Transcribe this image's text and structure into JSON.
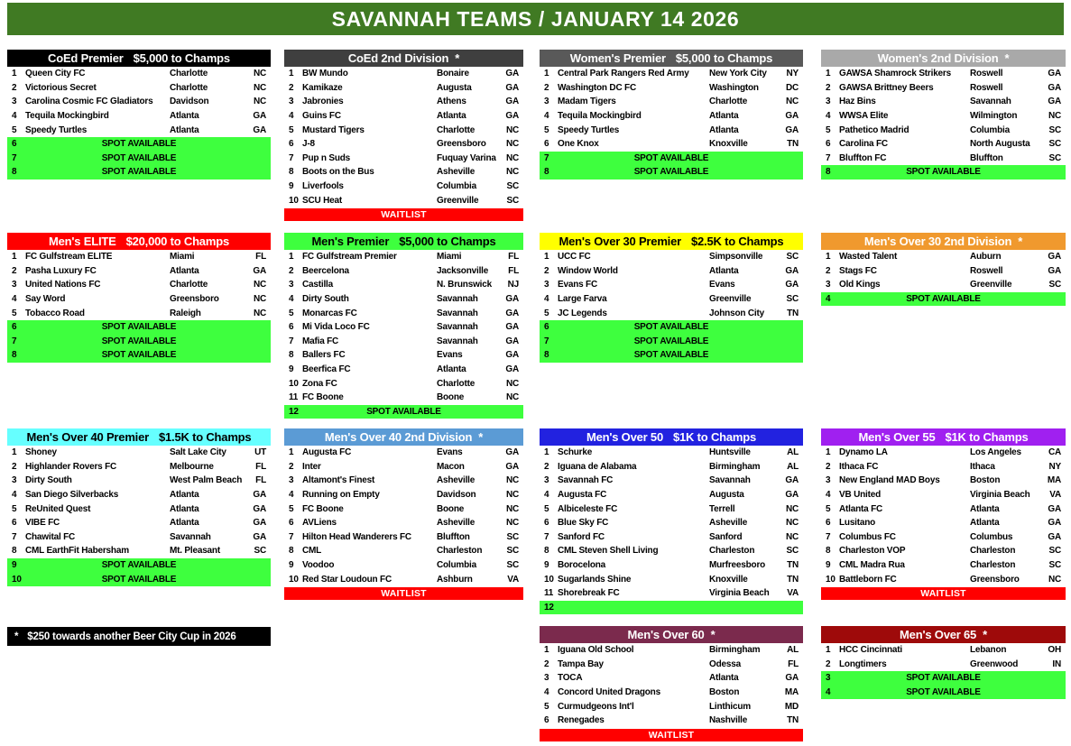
{
  "title_bar": {
    "text": "SAVANNAH TEAMS / JANUARY 14 2026",
    "bg": "#407a23"
  },
  "footnote": {
    "star": "*",
    "text": "$250 towards another Beer City Cup in 2026"
  },
  "tables": [
    {
      "key": "coed_premier",
      "name": "CoEd Premier",
      "prize": "$5,000 to Champs",
      "header_bg": "#000000",
      "header_fg": "#ffffff",
      "teams": [
        {
          "n": 1,
          "team": "Queen City FC",
          "city": "Charlotte",
          "state": "NC"
        },
        {
          "n": 2,
          "team": "Victorious Secret",
          "city": "Charlotte",
          "state": "NC"
        },
        {
          "n": 3,
          "team": "Carolina Cosmic FC Gladiators",
          "city": "Davidson",
          "state": "NC"
        },
        {
          "n": 4,
          "team": "Tequila Mockingbird",
          "city": "Atlanta",
          "state": "GA"
        },
        {
          "n": 5,
          "team": "Speedy Turtles",
          "city": "Atlanta",
          "state": "GA"
        }
      ],
      "spots": [
        {
          "n": 6,
          "label": "SPOT AVAILABLE"
        },
        {
          "n": 7,
          "label": "SPOT AVAILABLE"
        },
        {
          "n": 8,
          "label": "SPOT AVAILABLE"
        }
      ]
    },
    {
      "key": "coed_2nd",
      "name": "CoEd 2nd Division",
      "star": true,
      "header_bg": "#3f3f3f",
      "header_fg": "#ffffff",
      "teams": [
        {
          "n": 1,
          "team": "BW Mundo",
          "city": "Bonaire",
          "state": "GA"
        },
        {
          "n": 2,
          "team": "Kamikaze",
          "city": "Augusta",
          "state": "GA"
        },
        {
          "n": 3,
          "team": "Jabronies",
          "city": "Athens",
          "state": "GA"
        },
        {
          "n": 4,
          "team": "Guins FC",
          "city": "Atlanta",
          "state": "GA"
        },
        {
          "n": 5,
          "team": "Mustard Tigers",
          "city": "Charlotte",
          "state": "NC"
        },
        {
          "n": 6,
          "team": "J-8",
          "city": "Greensboro",
          "state": "NC"
        },
        {
          "n": 7,
          "team": "Pup n Suds",
          "city": "Fuquay Varina",
          "state": "NC"
        },
        {
          "n": 8,
          "team": "Boots on the Bus",
          "city": "Asheville",
          "state": "NC"
        },
        {
          "n": 9,
          "team": "Liverfools",
          "city": "Columbia",
          "state": "SC"
        },
        {
          "n": 10,
          "team": "SCU Heat",
          "city": "Greenville",
          "state": "SC"
        }
      ],
      "waitlist": "WAITLIST"
    },
    {
      "key": "womens_premier",
      "name": "Women's Premier",
      "prize": "$5,000 to Champs",
      "header_bg": "#595959",
      "header_fg": "#ffffff",
      "teams": [
        {
          "n": 1,
          "team": "Central Park Rangers Red Army",
          "city": "New York City",
          "state": "NY"
        },
        {
          "n": 2,
          "team": "Washington DC FC",
          "city": "Washington",
          "state": "DC"
        },
        {
          "n": 3,
          "team": "Madam Tigers",
          "city": "Charlotte",
          "state": "NC"
        },
        {
          "n": 4,
          "team": "Tequila Mockingbird",
          "city": "Atlanta",
          "state": "GA"
        },
        {
          "n": 5,
          "team": "Speedy Turtles",
          "city": "Atlanta",
          "state": "GA"
        },
        {
          "n": 6,
          "team": "One Knox",
          "city": "Knoxville",
          "state": "TN"
        }
      ],
      "spots": [
        {
          "n": 7,
          "label": "SPOT AVAILABLE"
        },
        {
          "n": 8,
          "label": "SPOT AVAILABLE"
        }
      ]
    },
    {
      "key": "womens_2nd",
      "name": "Women's 2nd Division",
      "star": true,
      "header_bg": "#a9a9a9",
      "header_fg": "#ffffff",
      "teams": [
        {
          "n": 1,
          "team": "GAWSA Shamrock Strikers",
          "city": "Roswell",
          "state": "GA"
        },
        {
          "n": 2,
          "team": "GAWSA Brittney Beers",
          "city": "Roswell",
          "state": "GA"
        },
        {
          "n": 3,
          "team": "Haz Bins",
          "city": "Savannah",
          "state": "GA"
        },
        {
          "n": 4,
          "team": "WWSA Elite",
          "city": "Wilmington",
          "state": "NC"
        },
        {
          "n": 5,
          "team": "Pathetico Madrid",
          "city": "Columbia",
          "state": "SC"
        },
        {
          "n": 6,
          "team": "Carolina FC",
          "city": "North Augusta",
          "state": "SC"
        },
        {
          "n": 7,
          "team": "Bluffton FC",
          "city": "Bluffton",
          "state": "SC"
        }
      ],
      "spots": [
        {
          "n": 8,
          "label": "SPOT AVAILABLE"
        }
      ]
    },
    {
      "key": "mens_elite",
      "name": "Men's ELITE",
      "prize": "$20,000 to Champs",
      "header_bg": "#ff0000",
      "header_fg": "#ffffff",
      "teams": [
        {
          "n": 1,
          "team": "FC Gulfstream ELITE",
          "city": "Miami",
          "state": "FL"
        },
        {
          "n": 2,
          "team": "Pasha Luxury FC",
          "city": "Atlanta",
          "state": "GA"
        },
        {
          "n": 3,
          "team": "United Nations FC",
          "city": "Charlotte",
          "state": "NC"
        },
        {
          "n": 4,
          "team": "Say Word",
          "city": "Greensboro",
          "state": "NC"
        },
        {
          "n": 5,
          "team": "Tobacco Road",
          "city": "Raleigh",
          "state": "NC"
        }
      ],
      "spots": [
        {
          "n": 6,
          "label": "SPOT AVAILABLE"
        },
        {
          "n": 7,
          "label": "SPOT AVAILABLE"
        },
        {
          "n": 8,
          "label": "SPOT AVAILABLE"
        }
      ]
    },
    {
      "key": "mens_premier",
      "name": "Men's Premier",
      "prize": "$5,000 to Champs",
      "header_bg": "#3eff3e",
      "header_fg": "#000000",
      "teams": [
        {
          "n": 1,
          "team": "FC Gulfstream Premier",
          "city": "Miami",
          "state": "FL"
        },
        {
          "n": 2,
          "team": "Beercelona",
          "city": "Jacksonville",
          "state": "FL"
        },
        {
          "n": 3,
          "team": "Castilla",
          "city": "N. Brunswick",
          "state": "NJ"
        },
        {
          "n": 4,
          "team": "Dirty South",
          "city": "Savannah",
          "state": "GA"
        },
        {
          "n": 5,
          "team": "Monarcas FC",
          "city": "Savannah",
          "state": "GA"
        },
        {
          "n": 6,
          "team": "Mi Vida Loco FC",
          "city": "Savannah",
          "state": "GA"
        },
        {
          "n": 7,
          "team": "Mafia FC",
          "city": "Savannah",
          "state": "GA"
        },
        {
          "n": 8,
          "team": "Ballers FC",
          "city": "Evans",
          "state": "GA"
        },
        {
          "n": 9,
          "team": "Beerfica FC",
          "city": "Atlanta",
          "state": "GA"
        },
        {
          "n": 10,
          "team": "Zona FC",
          "city": "Charlotte",
          "state": "NC"
        },
        {
          "n": 11,
          "team": "FC Boone",
          "city": "Boone",
          "state": "NC"
        }
      ],
      "spots": [
        {
          "n": 12,
          "label": "SPOT AVAILABLE"
        }
      ]
    },
    {
      "key": "mens_o30_premier",
      "name": "Men's Over 30 Premier",
      "prize": "$2.5K to Champs",
      "header_bg": "#ffff00",
      "header_fg": "#000000",
      "teams": [
        {
          "n": 1,
          "team": "UCC FC",
          "city": "Simpsonville",
          "state": "SC"
        },
        {
          "n": 2,
          "team": "Window World",
          "city": "Atlanta",
          "state": "GA"
        },
        {
          "n": 3,
          "team": "Evans FC",
          "city": "Evans",
          "state": "GA"
        },
        {
          "n": 4,
          "team": "Large Farva",
          "city": "Greenville",
          "state": "SC"
        },
        {
          "n": 5,
          "team": "JC Legends",
          "city": "Johnson City",
          "state": "TN"
        }
      ],
      "spots": [
        {
          "n": 6,
          "label": "SPOT AVAILABLE"
        },
        {
          "n": 7,
          "label": "SPOT AVAILABLE"
        },
        {
          "n": 8,
          "label": "SPOT AVAILABLE"
        }
      ]
    },
    {
      "key": "mens_o30_2nd",
      "name": "Men's Over 30 2nd Division",
      "star": true,
      "header_bg": "#f0992e",
      "header_fg": "#ffffff",
      "teams": [
        {
          "n": 1,
          "team": "Wasted Talent",
          "city": "Auburn",
          "state": "GA"
        },
        {
          "n": 2,
          "team": "Stags FC",
          "city": "Roswell",
          "state": "GA"
        },
        {
          "n": 3,
          "team": "Old Kings",
          "city": "Greenville",
          "state": "SC"
        }
      ],
      "spots": [
        {
          "n": 4,
          "label": "SPOT AVAILABLE"
        }
      ]
    },
    {
      "key": "mens_o40_premier",
      "name": "Men's Over 40 Premier",
      "prize": "$1.5K to Champs",
      "header_bg": "#66ffff",
      "header_fg": "#000000",
      "teams": [
        {
          "n": 1,
          "team": "Shoney",
          "city": "Salt Lake City",
          "state": "UT"
        },
        {
          "n": 2,
          "team": "Highlander Rovers FC",
          "city": "Melbourne",
          "state": "FL"
        },
        {
          "n": 3,
          "team": "Dirty South",
          "city": "West Palm Beach",
          "state": "FL"
        },
        {
          "n": 4,
          "team": "San Diego Silverbacks",
          "city": "Atlanta",
          "state": "GA"
        },
        {
          "n": 5,
          "team": "ReUnited Quest",
          "city": "Atlanta",
          "state": "GA"
        },
        {
          "n": 6,
          "team": "VIBE FC",
          "city": "Atlanta",
          "state": "GA"
        },
        {
          "n": 7,
          "team": "Chawital FC",
          "city": "Savannah",
          "state": "GA"
        },
        {
          "n": 8,
          "team": "CML EarthFit Habersham",
          "city": "Mt. Pleasant",
          "state": "SC"
        }
      ],
      "spots": [
        {
          "n": 9,
          "label": "SPOT AVAILABLE"
        },
        {
          "n": 10,
          "label": "SPOT AVAILABLE"
        }
      ]
    },
    {
      "key": "mens_o40_2nd",
      "name": "Men's Over 40 2nd Division",
      "star": true,
      "header_bg": "#5b9bd5",
      "header_fg": "#ffffff",
      "teams": [
        {
          "n": 1,
          "team": "Augusta FC",
          "city": "Evans",
          "state": "GA"
        },
        {
          "n": 2,
          "team": "Inter",
          "city": "Macon",
          "state": "GA"
        },
        {
          "n": 3,
          "team": "Altamont's Finest",
          "city": "Asheville",
          "state": "NC"
        },
        {
          "n": 4,
          "team": "Running on Empty",
          "city": "Davidson",
          "state": "NC"
        },
        {
          "n": 5,
          "team": "FC Boone",
          "city": "Boone",
          "state": "NC"
        },
        {
          "n": 6,
          "team": "AVLiens",
          "city": "Asheville",
          "state": "NC"
        },
        {
          "n": 7,
          "team": "Hilton Head Wanderers FC",
          "city": "Bluffton",
          "state": "SC"
        },
        {
          "n": 8,
          "team": "CML",
          "city": "Charleston",
          "state": "SC"
        },
        {
          "n": 9,
          "team": "Voodoo",
          "city": "Columbia",
          "state": "SC"
        },
        {
          "n": 10,
          "team": "Red Star Loudoun FC",
          "city": "Ashburn",
          "state": "VA"
        }
      ],
      "waitlist": "WAITLIST"
    },
    {
      "key": "mens_o50",
      "name": "Men's Over 50",
      "prize": "$1K to Champs",
      "header_bg": "#2222e0",
      "header_fg": "#ffffff",
      "teams": [
        {
          "n": 1,
          "team": "Schurke",
          "city": "Huntsville",
          "state": "AL"
        },
        {
          "n": 2,
          "team": "Iguana de Alabama",
          "city": "Birmingham",
          "state": "AL"
        },
        {
          "n": 3,
          "team": "Savannah FC",
          "city": "Savannah",
          "state": "GA"
        },
        {
          "n": 4,
          "team": "Augusta FC",
          "city": "Augusta",
          "state": "GA"
        },
        {
          "n": 5,
          "team": "Albiceleste FC",
          "city": "Terrell",
          "state": "NC"
        },
        {
          "n": 6,
          "team": "Blue Sky FC",
          "city": "Asheville",
          "state": "NC"
        },
        {
          "n": 7,
          "team": "Sanford FC",
          "city": "Sanford",
          "state": "NC"
        },
        {
          "n": 8,
          "team": "CML Steven Shell Living",
          "city": "Charleston",
          "state": "SC"
        },
        {
          "n": 9,
          "team": "Borocelona",
          "city": "Murfreesboro",
          "state": "TN"
        },
        {
          "n": 10,
          "team": "Sugarlands Shine",
          "city": "Knoxville",
          "state": "TN"
        },
        {
          "n": 11,
          "team": "Shorebreak FC",
          "city": "Virginia Beach",
          "state": "VA"
        }
      ],
      "spots": [
        {
          "n": 12,
          "label": ""
        }
      ]
    },
    {
      "key": "mens_o55",
      "name": "Men's Over 55",
      "prize": "$1K to Champs",
      "header_bg": "#a020f0",
      "header_fg": "#ffffff",
      "teams": [
        {
          "n": 1,
          "team": "Dynamo LA",
          "city": "Los Angeles",
          "state": "CA"
        },
        {
          "n": 2,
          "team": "Ithaca FC",
          "city": "Ithaca",
          "state": "NY"
        },
        {
          "n": 3,
          "team": "New England MAD Boys",
          "city": "Boston",
          "state": "MA"
        },
        {
          "n": 4,
          "team": "VB United",
          "city": "Virginia Beach",
          "state": "VA"
        },
        {
          "n": 5,
          "team": "Atlanta FC",
          "city": "Atlanta",
          "state": "GA"
        },
        {
          "n": 6,
          "team": "Lusitano",
          "city": "Atlanta",
          "state": "GA"
        },
        {
          "n": 7,
          "team": "Columbus FC",
          "city": "Columbus",
          "state": "GA"
        },
        {
          "n": 8,
          "team": "Charleston VOP",
          "city": "Charleston",
          "state": "SC"
        },
        {
          "n": 9,
          "team": "CML Madra Rua",
          "city": "Charleston",
          "state": "SC"
        },
        {
          "n": 10,
          "team": "Battleborn FC",
          "city": "Greensboro",
          "state": "NC"
        }
      ],
      "waitlist": "WAITLIST"
    },
    {
      "key": "mens_o60",
      "name": "Men's Over 60",
      "star": true,
      "header_bg": "#7b2a4d",
      "header_fg": "#ffffff",
      "teams": [
        {
          "n": 1,
          "team": "Iguana Old School",
          "city": "Birmingham",
          "state": "AL"
        },
        {
          "n": 2,
          "team": "Tampa Bay",
          "city": "Odessa",
          "state": "FL"
        },
        {
          "n": 3,
          "team": "TOCA",
          "city": "Atlanta",
          "state": "GA"
        },
        {
          "n": 4,
          "team": "Concord United Dragons",
          "city": "Boston",
          "state": "MA"
        },
        {
          "n": 5,
          "team": "Curmudgeons Int'l",
          "city": "Linthicum",
          "state": "MD"
        },
        {
          "n": 6,
          "team": "Renegades",
          "city": "Nashville",
          "state": "TN"
        }
      ],
      "waitlist": "WAITLIST"
    },
    {
      "key": "mens_o65",
      "name": "Men's Over 65",
      "star": true,
      "header_bg": "#9e0a0a",
      "header_fg": "#ffffff",
      "teams": [
        {
          "n": 1,
          "team": "HCC Cincinnati",
          "city": "Lebanon",
          "state": "OH"
        },
        {
          "n": 2,
          "team": "Longtimers",
          "city": "Greenwood",
          "state": "IN"
        }
      ],
      "spots": [
        {
          "n": 3,
          "label": "SPOT AVAILABLE"
        },
        {
          "n": 4,
          "label": "SPOT AVAILABLE"
        }
      ]
    }
  ]
}
